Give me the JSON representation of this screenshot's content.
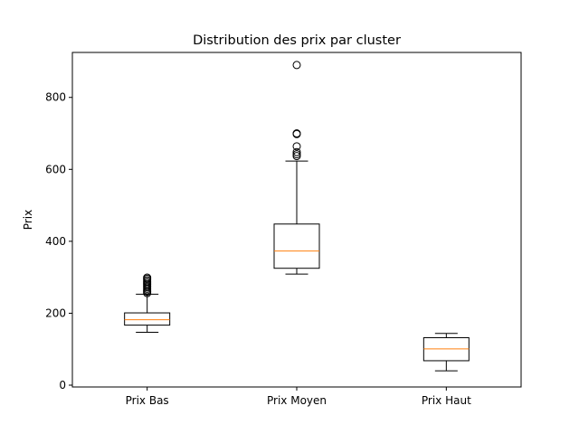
{
  "chart_data": {
    "type": "boxplot",
    "title": "Distribution des prix par cluster",
    "xlabel": "",
    "ylabel": "Prix",
    "categories": [
      "Prix Bas",
      "Prix Moyen",
      "Prix Haut"
    ],
    "ylim": [
      -5,
      925
    ],
    "yticks": [
      0,
      200,
      400,
      600,
      800
    ],
    "grid": false,
    "colors": {
      "box": "#000000",
      "median": "#ff7f0e"
    },
    "boxes": [
      {
        "name": "Prix Bas",
        "whisker_low": 147,
        "q1": 167,
        "median": 182,
        "q3": 201,
        "whisker_high": 253,
        "outliers": [
          256,
          260,
          264,
          268,
          272,
          276,
          280,
          284,
          288,
          292,
          296,
          299
        ]
      },
      {
        "name": "Prix Moyen",
        "whisker_low": 309,
        "q1": 325,
        "median": 373,
        "q3": 448,
        "whisker_high": 623,
        "outliers": [
          637,
          642,
          648,
          664,
          698,
          700,
          890
        ]
      },
      {
        "name": "Prix Haut",
        "whisker_low": 40,
        "q1": 68,
        "median": 101,
        "q3": 132,
        "whisker_high": 144,
        "outliers": []
      }
    ]
  }
}
